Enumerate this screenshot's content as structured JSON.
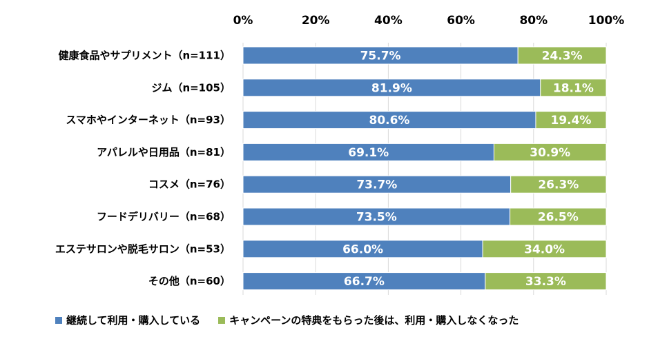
{
  "chart_data": {
    "type": "bar",
    "orientation": "horizontal",
    "stacked": true,
    "categories": [
      "健康食品やサプリメント（n=111）",
      "ジム（n=105）",
      "スマホやインターネット（n=93）",
      "アパレルや日用品（n=81）",
      "コスメ（n=76）",
      "フードデリバリー（n=68）",
      "エステサロンや脱毛サロン（n=53）",
      "その他（n=60）"
    ],
    "series": [
      {
        "name": "継続して利用・購入している",
        "color": "#4f81bd",
        "values": [
          75.7,
          81.9,
          80.6,
          69.1,
          73.7,
          73.5,
          66.0,
          66.7
        ],
        "labels": [
          "75.7%",
          "81.9%",
          "80.6%",
          "69.1%",
          "73.7%",
          "73.5%",
          "66.0%",
          "66.7%"
        ]
      },
      {
        "name": "キャンペーンの特典をもらった後は、利用・購入しなくなった",
        "color": "#9bbb59",
        "values": [
          24.3,
          18.1,
          19.4,
          30.9,
          26.3,
          26.5,
          34.0,
          33.3
        ],
        "labels": [
          "24.3%",
          "18.1%",
          "19.4%",
          "30.9%",
          "26.3%",
          "26.5%",
          "34.0%",
          "33.3%"
        ]
      }
    ],
    "xlim": [
      0,
      100
    ],
    "xticks": [
      0,
      20,
      40,
      60,
      80,
      100
    ],
    "xtick_labels": [
      "0%",
      "20%",
      "40%",
      "60%",
      "80%",
      "100%"
    ],
    "axis_position": "top",
    "grid": true,
    "legend_position": "bottom"
  }
}
